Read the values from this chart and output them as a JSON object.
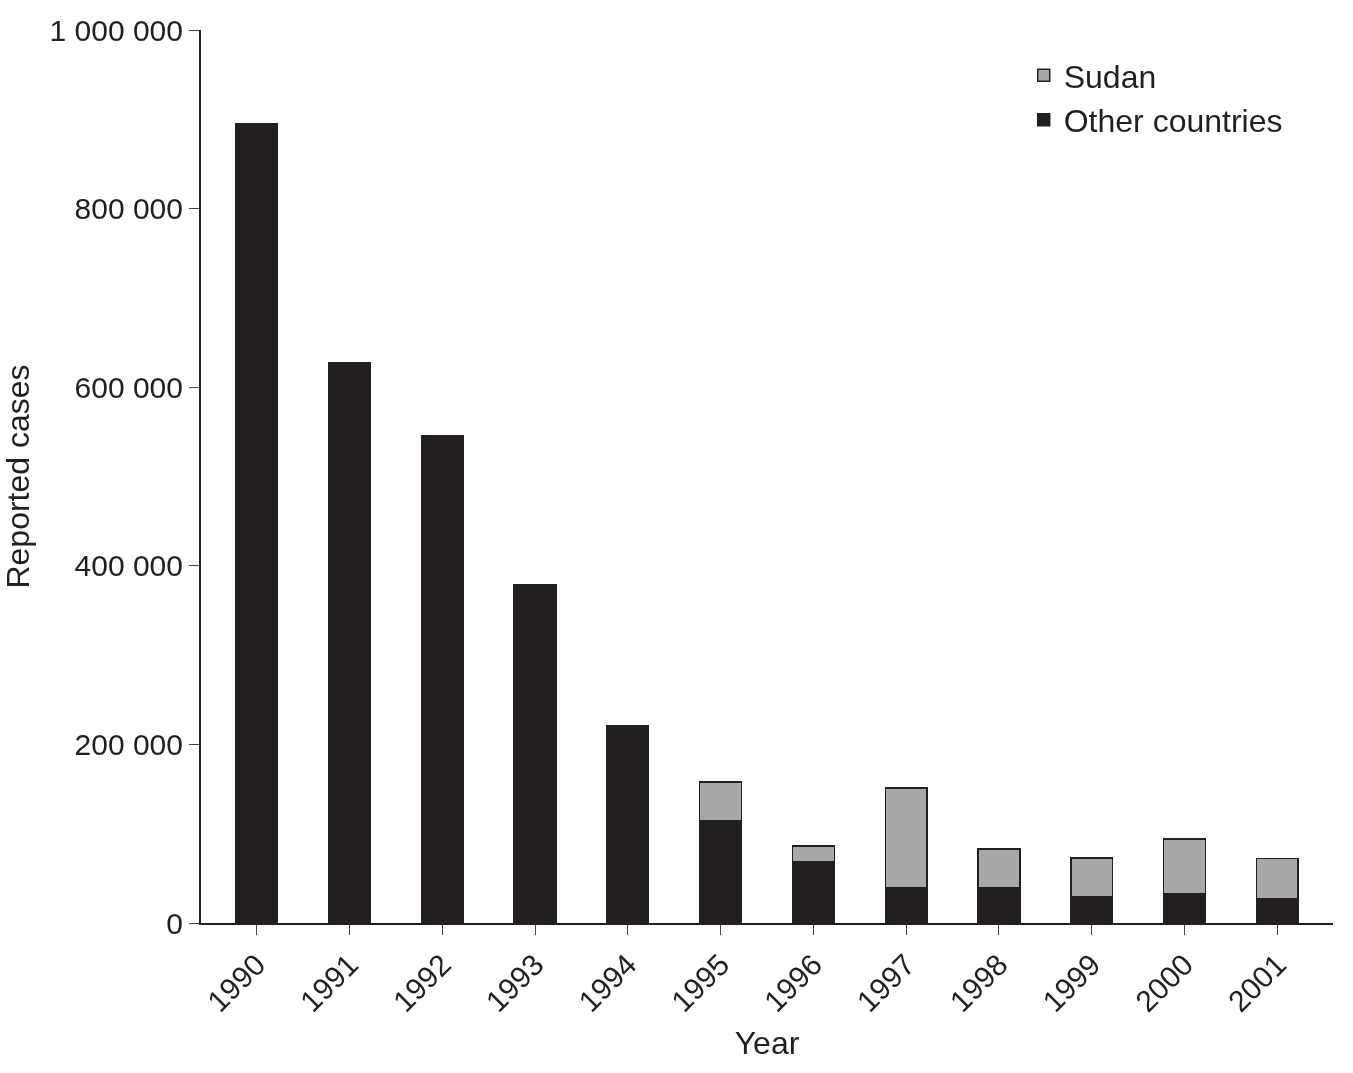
{
  "chart_data": {
    "type": "bar",
    "stacked": true,
    "xlabel": "Year",
    "ylabel": "Reported cases",
    "categories": [
      "1990",
      "1991",
      "1992",
      "1993",
      "1994",
      "1995",
      "1996",
      "1997",
      "1998",
      "1999",
      "2000",
      "2001"
    ],
    "series": [
      {
        "name": "Other countries",
        "color": "#231f20",
        "values": [
          895000,
          627000,
          546000,
          379000,
          221000,
          114000,
          69000,
          40000,
          40000,
          29000,
          33000,
          27000
        ]
      },
      {
        "name": "Sudan",
        "color": "#a8a8a8",
        "values": [
          null,
          null,
          null,
          null,
          null,
          44000,
          17000,
          111000,
          43000,
          44000,
          61000,
          45000
        ]
      }
    ],
    "ylim": [
      0,
      1000000
    ],
    "yticks": [
      0,
      {
        "value": 200000,
        "label": "200 000"
      },
      {
        "value": 400000,
        "label": "400 000"
      },
      {
        "value": 600000,
        "label": "600 000"
      },
      {
        "value": 800000,
        "label": "800 000"
      },
      {
        "value": 1000000,
        "label": "1 000 000"
      }
    ],
    "legend": "top right"
  }
}
